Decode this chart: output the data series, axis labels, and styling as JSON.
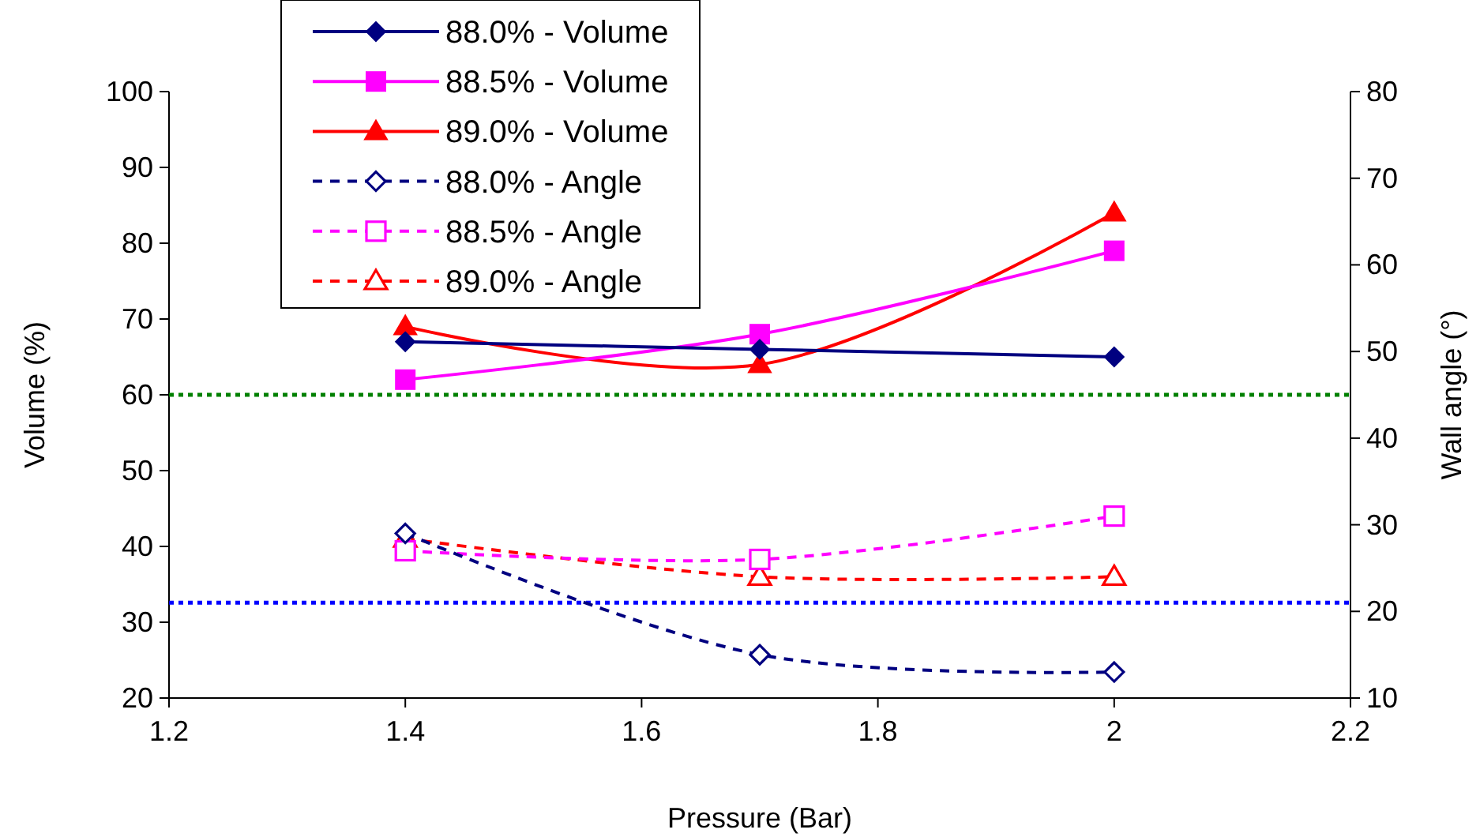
{
  "chart_data": {
    "type": "line",
    "xlabel": "Pressure (Bar)",
    "ylabel": "Volume (%)",
    "y2label": "Wall angle (°)",
    "x": [
      1.4,
      1.7,
      2.0
    ],
    "xlim": [
      1.2,
      2.2
    ],
    "xticks": [
      1.2,
      1.4,
      1.6,
      1.8,
      2,
      2.2
    ],
    "ylim": [
      20,
      100
    ],
    "yticks": [
      20,
      30,
      40,
      50,
      60,
      70,
      80,
      90,
      100
    ],
    "y2lim": [
      10,
      80
    ],
    "y2ticks": [
      10,
      20,
      30,
      40,
      50,
      60,
      70,
      80
    ],
    "legend": "top left",
    "grid": false,
    "series": [
      {
        "name": "88.0% - Volume",
        "color": "#000080",
        "values": [
          67,
          66,
          65
        ],
        "marker": "diamond",
        "line_style": "solid"
      },
      {
        "name": "88.5% - Volume",
        "color": "#ff00ff",
        "values": [
          62,
          68,
          79
        ],
        "marker": "square",
        "line_style": "solid"
      },
      {
        "name": "89.0% - Volume",
        "color": "#ff0000",
        "values": [
          69,
          64,
          84
        ],
        "marker": "triangle",
        "line_style": "solid"
      },
      {
        "name": "88.0% - Angle",
        "color": "#000080",
        "values": [
          29,
          15,
          13
        ],
        "marker": "diamond",
        "line_style": "dashed",
        "axis": "y2"
      },
      {
        "name": "88.5% - Angle",
        "color": "#ff00ff",
        "values": [
          27,
          26,
          31
        ],
        "marker": "square",
        "line_style": "dashed",
        "axis": "y2"
      },
      {
        "name": "89.0% - Angle",
        "color": "#ff0000",
        "values": [
          28.4,
          24,
          24
        ],
        "marker": "triangle",
        "line_style": "dashed",
        "axis": "y2"
      }
    ],
    "ref_lines": [
      {
        "axis": "y2",
        "value": 45,
        "color": "#008000",
        "line_style": "dotted"
      },
      {
        "axis": "y2",
        "value": 21,
        "color": "#0000ff",
        "line_style": "dotted"
      }
    ]
  }
}
